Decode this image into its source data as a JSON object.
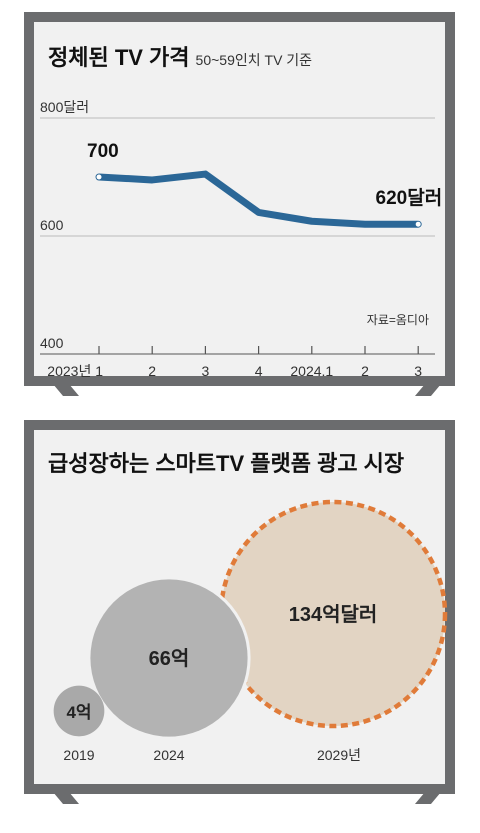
{
  "chart_data": [
    {
      "type": "line",
      "title": "정체된 TV 가격",
      "subtitle": "50~59인치 TV 기준",
      "x": [
        "2023년 1",
        "2",
        "3",
        "4",
        "2024.1",
        "2",
        "3"
      ],
      "series": [
        {
          "values": [
            700,
            695,
            705,
            640,
            625,
            620,
            620
          ]
        }
      ],
      "y_tick_labels": [
        "800달러",
        "600",
        "400"
      ],
      "y_ticks": [
        800,
        600,
        400
      ],
      "ylim": [
        400,
        800
      ],
      "grid": true,
      "annotations": {
        "first": "700",
        "last": "620달러"
      },
      "source": "자료=옴디아",
      "line_color": "#2b6797"
    },
    {
      "type": "bubble",
      "title": "급성장하는 스마트TV 플랫폼 광고 시장",
      "categories": [
        "2019",
        "2024",
        "2029년"
      ],
      "values": [
        4,
        66,
        134
      ],
      "value_labels": [
        "4억",
        "66억",
        "134억달러"
      ],
      "colors": {
        "small": "#a9a9a9",
        "mid": "#b3b3b3",
        "future_fill": "#e2d4c3",
        "future_border": "#e07b39"
      }
    }
  ],
  "colors": {
    "frame": "#6b6c6e",
    "screen": "#f1f1f1"
  }
}
